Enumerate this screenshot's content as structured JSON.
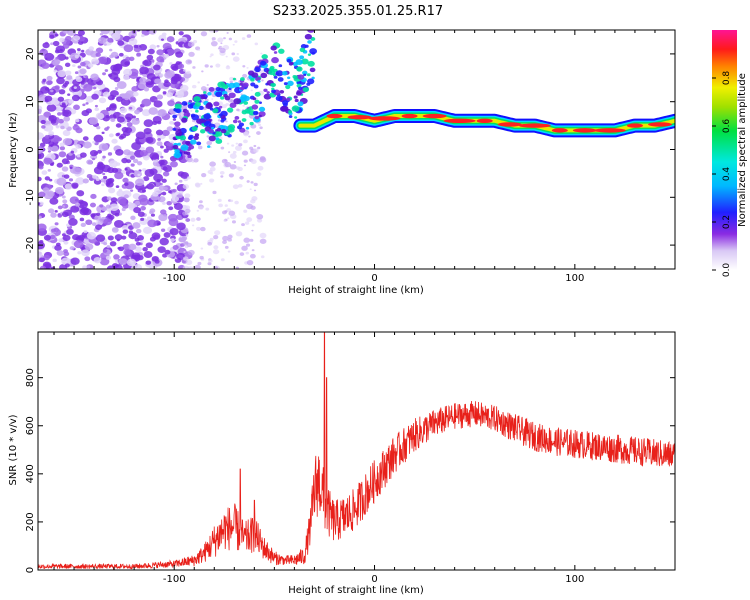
{
  "title": "S233.2025.355.01.25.R17",
  "colors": {
    "snr_line": "#e8201a",
    "spectro_dots": [
      "#7a2ee0",
      "#9d63ea",
      "#c3a3f2",
      "#e2d6f9"
    ],
    "ridge": [
      "#1010ff",
      "#00d8ff",
      "#00e060",
      "#e8e800",
      "#ff2020"
    ]
  },
  "chart_data": [
    {
      "type": "heatmap",
      "name": "spectrogram",
      "xlabel": "Height of straight line (km)",
      "ylabel": "Frequency (Hz)",
      "xlim": [
        -168,
        150
      ],
      "ylim": [
        -25,
        25
      ],
      "xticks": [
        -100,
        0,
        100
      ],
      "xtick_labels": [
        "-100",
        "0",
        "100"
      ],
      "yticks": [
        -20,
        -10,
        0,
        10,
        20
      ],
      "ytick_labels": [
        "-20",
        "-10",
        "0",
        "10",
        "20"
      ],
      "colorbar": {
        "label": "Normalized spectral amplitude",
        "range": [
          0,
          1
        ],
        "ticks": [
          0.0,
          0.2,
          0.4,
          0.6,
          0.8
        ],
        "tick_labels": [
          "0.0",
          "0.2",
          "0.4",
          "0.6",
          "0.8"
        ]
      },
      "ridge_x": [
        -37,
        -30,
        -20,
        -10,
        0,
        10,
        20,
        30,
        40,
        50,
        60,
        70,
        80,
        90,
        100,
        110,
        120,
        130,
        140,
        150
      ],
      "ridge_freq": [
        5,
        5,
        7,
        7,
        6,
        7,
        7,
        7,
        6,
        6,
        6,
        5,
        5,
        4,
        4,
        4,
        4,
        5,
        5,
        6
      ],
      "scatter_band": {
        "x": [
          -100,
          -90,
          -80,
          -70,
          -60,
          -55,
          -50,
          -45,
          -40,
          -35,
          -30
        ],
        "freq": [
          3,
          5,
          7,
          9,
          11,
          14,
          17,
          14,
          12,
          16,
          21
        ]
      }
    },
    {
      "type": "line",
      "name": "snr",
      "xlabel": "Height of straight line (km)",
      "ylabel": "SNR (10 * v/v)",
      "xlim": [
        -168,
        150
      ],
      "ylim": [
        0,
        990
      ],
      "xticks": [
        -100,
        0,
        100
      ],
      "xtick_labels": [
        "-100",
        "0",
        "100"
      ],
      "yticks": [
        0,
        200,
        400,
        600,
        800
      ],
      "ytick_labels": [
        "0",
        "200",
        "400",
        "600",
        "800"
      ],
      "envelope": {
        "x": [
          -168,
          -120,
          -100,
          -90,
          -85,
          -80,
          -75,
          -70,
          -65,
          -60,
          -55,
          -50,
          -45,
          -40,
          -35,
          -32,
          -30,
          -28,
          -26,
          -24,
          -20,
          -15,
          -10,
          -5,
          0,
          10,
          20,
          30,
          40,
          50,
          60,
          70,
          80,
          90,
          100,
          110,
          120,
          130,
          140,
          150
        ],
        "mean": [
          15,
          15,
          25,
          40,
          70,
          120,
          170,
          180,
          130,
          150,
          90,
          50,
          40,
          40,
          60,
          180,
          330,
          380,
          320,
          250,
          200,
          220,
          250,
          310,
          370,
          480,
          560,
          610,
          640,
          650,
          630,
          590,
          555,
          535,
          525,
          515,
          505,
          495,
          485,
          475
        ],
        "noise": [
          10,
          10,
          15,
          25,
          40,
          70,
          90,
          100,
          70,
          80,
          50,
          30,
          20,
          25,
          40,
          80,
          150,
          150,
          130,
          110,
          90,
          90,
          90,
          90,
          90,
          80,
          70,
          60,
          55,
          55,
          55,
          60,
          60,
          60,
          60,
          60,
          60,
          60,
          60,
          60
        ]
      },
      "spikes": [
        {
          "x": -67,
          "y": 420
        },
        {
          "x": -60,
          "y": 290
        },
        {
          "x": -25,
          "y": 990
        },
        {
          "x": -24,
          "y": 800
        }
      ]
    }
  ]
}
